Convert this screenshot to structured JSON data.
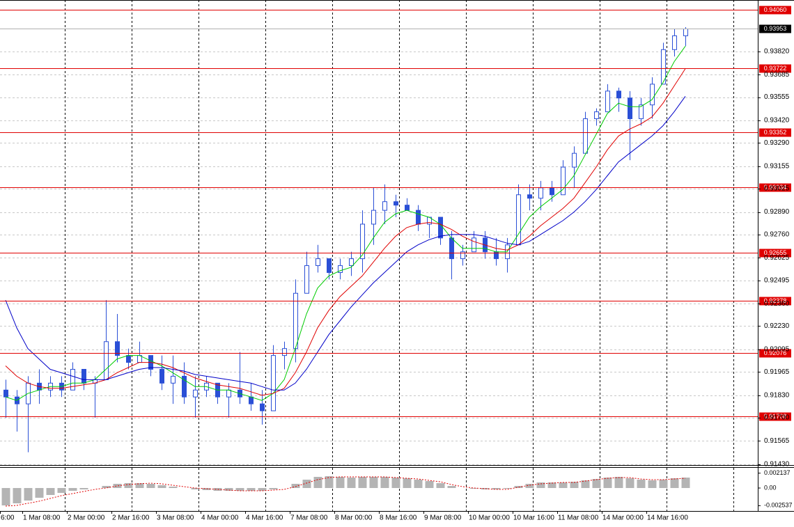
{
  "chart_data": {
    "type": "candlestick",
    "color": "#2a4fd6",
    "grid": true,
    "categories": [
      "6:00",
      null,
      "1 Mar 08:00",
      null,
      null,
      null,
      "2 Mar 00:00",
      null,
      null,
      null,
      "2 Mar 16:00",
      null,
      null,
      null,
      "3 Mar 08:00",
      null,
      null,
      null,
      "4 Mar 00:00",
      null,
      null,
      null,
      "4 Mar 16:00",
      null,
      null,
      null,
      "7 Mar 08:00",
      null,
      null,
      null,
      "8 Mar 00:00",
      null,
      null,
      null,
      "8 Mar 16:00",
      null,
      null,
      null,
      "9 Mar 08:00",
      null,
      null,
      null,
      "10 Mar 00:00",
      null,
      null,
      null,
      "10 Mar 16:00",
      null,
      null,
      null,
      "11 Mar 08:00",
      null,
      null,
      null,
      "14 Mar 00:00",
      null,
      null,
      null,
      "14 Mar 16:00",
      null,
      null,
      null
    ],
    "open": [
      0.9186,
      0.9182,
      0.9178,
      0.919,
      0.9186,
      0.919,
      0.9186,
      0.9198,
      0.919,
      0.9192,
      0.9214,
      0.9206,
      0.9202,
      0.9206,
      0.9198,
      0.919,
      0.9194,
      0.9182,
      0.9186,
      0.919,
      0.9182,
      0.9186,
      0.9182,
      0.9178,
      0.9174,
      0.9206,
      0.921,
      0.9242,
      0.9258,
      0.9262,
      0.9254,
      0.9258,
      0.9262,
      0.9282,
      0.929,
      0.9295,
      0.9293,
      0.929,
      0.9282,
      0.9286,
      0.9274,
      0.9262,
      0.9266,
      0.9274,
      0.9266,
      0.9262,
      0.927,
      0.9299,
      0.9297,
      0.9303,
      0.9299,
      0.9315,
      0.9323,
      0.9343,
      0.9347,
      0.9359,
      0.9355,
      0.9343,
      0.9351,
      0.9363,
      0.9383,
      0.9391
    ],
    "high": [
      0.9192,
      0.9186,
      0.9194,
      0.9198,
      0.9194,
      0.9194,
      0.9202,
      0.9198,
      0.9194,
      0.9238,
      0.923,
      0.921,
      0.9214,
      0.9206,
      0.9206,
      0.9206,
      0.9202,
      0.9194,
      0.9194,
      0.919,
      0.919,
      0.9208,
      0.919,
      0.9186,
      0.9212,
      0.9214,
      0.925,
      0.9266,
      0.927,
      0.9262,
      0.9262,
      0.9266,
      0.929,
      0.9303,
      0.9305,
      0.9299,
      0.9297,
      0.9293,
      0.9286,
      0.9286,
      0.9278,
      0.927,
      0.9278,
      0.9278,
      0.9274,
      0.9274,
      0.9305,
      0.9305,
      0.9307,
      0.9307,
      0.9319,
      0.9327,
      0.9347,
      0.9349,
      0.9363,
      0.9361,
      0.9359,
      0.9355,
      0.9367,
      0.9387,
      0.9395,
      0.9396
    ],
    "low": [
      0.917,
      0.9162,
      0.915,
      0.9178,
      0.9182,
      0.9182,
      0.9186,
      0.9186,
      0.917,
      0.9192,
      0.9202,
      0.9198,
      0.9202,
      0.9194,
      0.9186,
      0.9178,
      0.9178,
      0.917,
      0.9182,
      0.9178,
      0.917,
      0.9178,
      0.9174,
      0.9166,
      0.9174,
      0.9198,
      0.9202,
      0.9242,
      0.9254,
      0.925,
      0.925,
      0.9252,
      0.9254,
      0.927,
      0.9282,
      0.9286,
      0.929,
      0.9278,
      0.9274,
      0.927,
      0.925,
      0.9258,
      0.9266,
      0.9262,
      0.9258,
      0.9254,
      0.927,
      0.929,
      0.929,
      0.9295,
      0.9299,
      0.9303,
      0.9323,
      0.9339,
      0.9347,
      0.9347,
      0.9319,
      0.9339,
      0.9343,
      0.9363,
      0.9379,
      0.9385
    ],
    "close": [
      0.9182,
      0.9178,
      0.919,
      0.9186,
      0.919,
      0.9186,
      0.9198,
      0.919,
      0.9192,
      0.9214,
      0.9206,
      0.9202,
      0.9206,
      0.9198,
      0.919,
      0.9194,
      0.9182,
      0.9186,
      0.919,
      0.9182,
      0.9186,
      0.9182,
      0.9178,
      0.9174,
      0.9206,
      0.921,
      0.9242,
      0.9258,
      0.9262,
      0.9254,
      0.9258,
      0.9262,
      0.9282,
      0.929,
      0.9295,
      0.9293,
      0.929,
      0.9282,
      0.9286,
      0.9274,
      0.9262,
      0.9266,
      0.9274,
      0.9266,
      0.9262,
      0.927,
      0.9299,
      0.9297,
      0.9303,
      0.9299,
      0.9315,
      0.9323,
      0.9343,
      0.9347,
      0.9359,
      0.9355,
      0.9343,
      0.9351,
      0.9363,
      0.9383,
      0.9391,
      0.9395
    ],
    "series": [
      {
        "color": "#00cc00",
        "values": [
          0.9182,
          0.918,
          0.9184,
          0.9186,
          0.9188,
          0.9188,
          0.919,
          0.919,
          0.9192,
          0.9198,
          0.9204,
          0.9206,
          0.9206,
          0.9203,
          0.92,
          0.9196,
          0.9192,
          0.9188,
          0.9188,
          0.9186,
          0.9186,
          0.9184,
          0.9182,
          0.918,
          0.9184,
          0.9192,
          0.921,
          0.923,
          0.9245,
          0.9252,
          0.9255,
          0.9257,
          0.9264,
          0.9274,
          0.9283,
          0.9288,
          0.929,
          0.9288,
          0.9286,
          0.9282,
          0.9274,
          0.9268,
          0.9268,
          0.9268,
          0.9266,
          0.9266,
          0.9276,
          0.9286,
          0.9292,
          0.9297,
          0.9302,
          0.931,
          0.9322,
          0.9334,
          0.9346,
          0.9352,
          0.935,
          0.935,
          0.9354,
          0.9364,
          0.9376,
          0.9385
        ]
      },
      {
        "color": "#e00000",
        "values": [
          0.92,
          0.9194,
          0.919,
          0.9188,
          0.9187,
          0.9187,
          0.9188,
          0.9189,
          0.919,
          0.9192,
          0.9196,
          0.9199,
          0.9202,
          0.9202,
          0.9201,
          0.9199,
          0.9196,
          0.9193,
          0.9191,
          0.9189,
          0.9188,
          0.9187,
          0.9185,
          0.9183,
          0.9184,
          0.9187,
          0.9196,
          0.9208,
          0.9222,
          0.9232,
          0.924,
          0.9246,
          0.9252,
          0.926,
          0.9268,
          0.9275,
          0.928,
          0.9282,
          0.9283,
          0.9282,
          0.9279,
          0.9275,
          0.9272,
          0.927,
          0.9268,
          0.9267,
          0.927,
          0.9275,
          0.9281,
          0.9286,
          0.9291,
          0.9297,
          0.9306,
          0.9315,
          0.9325,
          0.9333,
          0.9337,
          0.934,
          0.9344,
          0.9352,
          0.9362,
          0.9372
        ]
      },
      {
        "color": "#0000c8",
        "values": [
          0.9238,
          0.9222,
          0.921,
          0.9204,
          0.9198,
          0.9196,
          0.9194,
          0.9192,
          0.9192,
          0.9192,
          0.9194,
          0.9196,
          0.9198,
          0.9199,
          0.9199,
          0.9198,
          0.9197,
          0.9195,
          0.9194,
          0.9193,
          0.9192,
          0.9191,
          0.919,
          0.9188,
          0.9186,
          0.9186,
          0.919,
          0.9198,
          0.9208,
          0.9218,
          0.9226,
          0.9234,
          0.9241,
          0.9248,
          0.9254,
          0.926,
          0.9266,
          0.927,
          0.9273,
          0.9275,
          0.9276,
          0.9276,
          0.9276,
          0.9275,
          0.9273,
          0.9271,
          0.927,
          0.9272,
          0.9276,
          0.928,
          0.9284,
          0.9289,
          0.9295,
          0.9302,
          0.931,
          0.9318,
          0.9323,
          0.9328,
          0.9333,
          0.9339,
          0.9347,
          0.9356
        ]
      }
    ],
    "ylim": [
      0.91426,
      0.94113
    ],
    "yticks": [
      {
        "value": 0.9382,
        "label": "0.93820"
      },
      0.93685,
      0.93555,
      {
        "value": 0.9342,
        "label": "0.93420"
      },
      {
        "value": 0.9329,
        "label": "0.93290"
      },
      0.93155,
      0.93025,
      {
        "value": 0.9289,
        "label": "0.92890"
      },
      {
        "value": 0.9276,
        "label": "0.92760"
      },
      0.92625,
      0.92495,
      {
        "value": 0.9236,
        "label": "0.92360"
      },
      {
        "value": 0.9223,
        "label": "0.92230"
      },
      0.92095,
      0.91965,
      {
        "value": 0.9183,
        "label": "0.91830"
      },
      {
        "value": 0.917,
        "label": "0.91700"
      },
      0.91565,
      {
        "value": 0.9143,
        "label": "0.91430"
      }
    ],
    "levels": [
      {
        "value": 0.9406,
        "label": "0.94060"
      },
      0.93722,
      0.93352,
      0.93034,
      0.92655,
      0.92378,
      0.92076,
      0.91708
    ],
    "level_color": "#e00000",
    "current_price": 0.93953,
    "oscillator": {
      "ylim": [
        -0.0033,
        0.0029
      ],
      "yticks": [
        0.002137,
        {
          "value": 0,
          "label": "0.00"
        },
        -0.002537
      ],
      "histogram": {
        "color": "#b4b4b4",
        "values": [
          -0.0025,
          -0.0022,
          -0.0018,
          -0.0014,
          -0.001,
          -0.0007,
          -0.0004,
          -0.0002,
          0,
          0.0003,
          0.0006,
          0.0007,
          0.0007,
          0.0006,
          0.0004,
          0.0002,
          0,
          -0.0002,
          -0.0003,
          -0.0004,
          -0.0004,
          -0.0004,
          -0.0004,
          -0.0004,
          -0.0002,
          0,
          0.0006,
          0.0012,
          0.0016,
          0.0017,
          0.0016,
          0.0015,
          0.0016,
          0.0016,
          0.0016,
          0.0015,
          0.0014,
          0.0012,
          0.001,
          0.0007,
          0.0003,
          0,
          -0.0001,
          -0.0002,
          -0.0002,
          -0.0001,
          0.0003,
          0.0006,
          0.0008,
          0.0008,
          0.0008,
          0.0009,
          0.0011,
          0.0013,
          0.0015,
          0.0016,
          0.0014,
          0.0012,
          0.0011,
          0.0012,
          0.0014,
          0.0015
        ]
      },
      "signal": {
        "color": "#e00000",
        "values": [
          -0.0026,
          -0.0025,
          -0.0022,
          -0.0019,
          -0.0015,
          -0.0011,
          -0.0008,
          -0.0005,
          -0.0002,
          0,
          0.0003,
          0.0005,
          0.0006,
          0.0007,
          0.0006,
          0.0004,
          0.0002,
          0,
          -0.0001,
          -0.0002,
          -0.0003,
          -0.0004,
          -0.0004,
          -0.0004,
          -0.0003,
          -0.0002,
          0.0002,
          0.0007,
          0.0012,
          0.0015,
          0.0016,
          0.0016,
          0.0016,
          0.0016,
          0.0016,
          0.0015,
          0.0014,
          0.0013,
          0.0011,
          0.0009,
          0.0005,
          0.0002,
          0,
          -0.0001,
          -0.0002,
          -0.0002,
          0.0001,
          0.0004,
          0.0006,
          0.0007,
          0.0008,
          0.0008,
          0.001,
          0.0012,
          0.0014,
          0.0015,
          0.0015,
          0.0013,
          0.0012,
          0.0012,
          0.0013,
          0.0014
        ]
      }
    }
  }
}
